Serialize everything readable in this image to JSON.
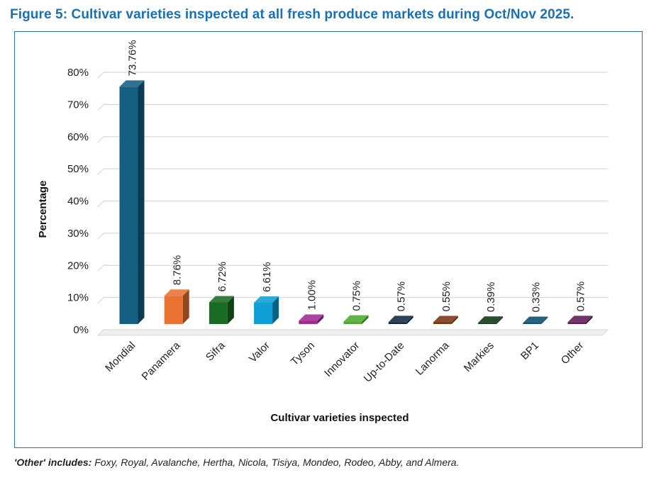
{
  "figure_title": "Figure 5: Cultivar varieties inspected at all fresh produce markets during Oct/Nov 2025.",
  "footnote": {
    "lead": "'Other' includes:",
    "text": " Foxy, Royal, Avalanche, Hertha, Nicola, Tisiya, Mondeo, Rodeo, Abby, and Almera."
  },
  "chart_data": {
    "type": "bar",
    "title": "",
    "xlabel": "Cultivar varieties inspected",
    "ylabel": "Percentage",
    "ylim": [
      0,
      80
    ],
    "yticks": [
      "0%",
      "10%",
      "20%",
      "30%",
      "40%",
      "50%",
      "60%",
      "70%",
      "80%"
    ],
    "grid": true,
    "categories": [
      "Mondial",
      "Panamera",
      "Sifra",
      "Valor",
      "Tyson",
      "Innovator",
      "Up-to-Date",
      "Lanorma",
      "Markies",
      "BP1",
      "Other"
    ],
    "values": [
      73.76,
      8.76,
      6.72,
      6.61,
      1.0,
      0.75,
      0.57,
      0.55,
      0.39,
      0.33,
      0.57
    ],
    "labels": [
      "73.76%",
      "8.76%",
      "6.72%",
      "6.61%",
      "1.00%",
      "0.75%",
      "0.57%",
      "0.55%",
      "0.39%",
      "0.33%",
      "0.57%"
    ],
    "colors": [
      "#155f82",
      "#e97132",
      "#196b24",
      "#0f9ed5",
      "#a02b93",
      "#4ea72e",
      "#0e2841",
      "#7a3510",
      "#0d3512",
      "#07506f",
      "#5e1a56"
    ]
  }
}
